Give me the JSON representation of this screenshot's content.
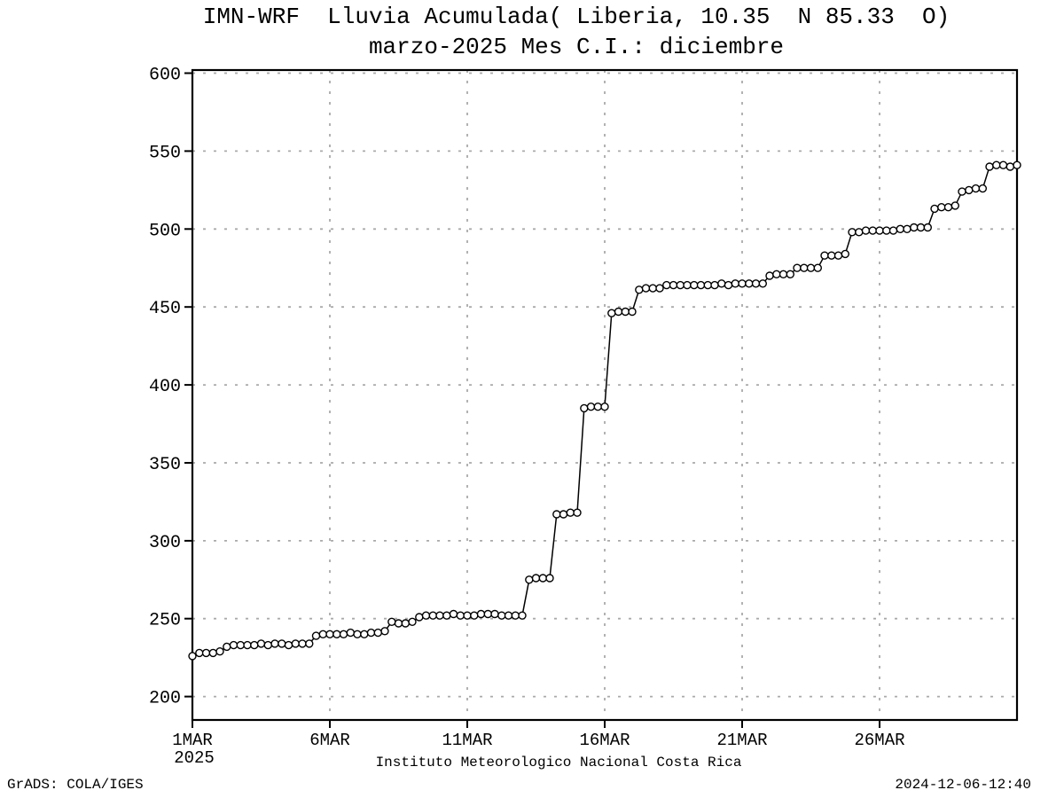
{
  "titles": {
    "line1": "IMN-WRF  Lluvia Acumulada( Liberia, 10.35  N 85.33  O)",
    "line2": "marzo-2025 Mes C.I.: diciembre"
  },
  "footer": {
    "left": "GrADS: COLA/IGES",
    "right": "2024-12-06-12:40"
  },
  "chart_data": {
    "type": "line",
    "title": "IMN-WRF  Lluvia Acumulada( Liberia, 10.35  N 85.33  O)",
    "subtitle": "marzo-2025 Mes C.I.: diciembre",
    "xlabel": "Instituto Meteorologico Nacional Costa Rica",
    "ylabel": "",
    "grid": true,
    "legend": "none",
    "marker": "open-circle",
    "xlim": [
      1,
      31
    ],
    "ylim": [
      185,
      602
    ],
    "y_ticks": [
      200,
      250,
      300,
      350,
      400,
      450,
      500,
      550,
      600
    ],
    "x_ticks": [
      {
        "day": 1,
        "label": "1MAR",
        "sublabel": "2025"
      },
      {
        "day": 6,
        "label": "6MAR"
      },
      {
        "day": 11,
        "label": "11MAR"
      },
      {
        "day": 16,
        "label": "16MAR"
      },
      {
        "day": 21,
        "label": "21MAR"
      },
      {
        "day": 26,
        "label": "26MAR"
      }
    ],
    "colors": {
      "line": "#000000",
      "marker_fill": "#ffffff",
      "marker_stroke": "#000000",
      "grid": "#aaaaaa",
      "frame": "#000000",
      "text": "#000000"
    },
    "series": [
      {
        "name": "Lluvia Acumulada",
        "points": [
          [
            1.0,
            226
          ],
          [
            1.25,
            228
          ],
          [
            1.5,
            228
          ],
          [
            1.75,
            228
          ],
          [
            2.0,
            229
          ],
          [
            2.25,
            232
          ],
          [
            2.5,
            233
          ],
          [
            2.75,
            233
          ],
          [
            3.0,
            233
          ],
          [
            3.25,
            233
          ],
          [
            3.5,
            234
          ],
          [
            3.75,
            233
          ],
          [
            4.0,
            234
          ],
          [
            4.25,
            234
          ],
          [
            4.5,
            233
          ],
          [
            4.75,
            234
          ],
          [
            5.0,
            234
          ],
          [
            5.25,
            234
          ],
          [
            5.5,
            239
          ],
          [
            5.75,
            240
          ],
          [
            6.0,
            240
          ],
          [
            6.25,
            240
          ],
          [
            6.5,
            240
          ],
          [
            6.75,
            241
          ],
          [
            7.0,
            240
          ],
          [
            7.25,
            240
          ],
          [
            7.5,
            241
          ],
          [
            7.75,
            241
          ],
          [
            8.0,
            242
          ],
          [
            8.25,
            248
          ],
          [
            8.5,
            247
          ],
          [
            8.75,
            247
          ],
          [
            9.0,
            248
          ],
          [
            9.25,
            251
          ],
          [
            9.5,
            252
          ],
          [
            9.75,
            252
          ],
          [
            10.0,
            252
          ],
          [
            10.25,
            252
          ],
          [
            10.5,
            253
          ],
          [
            10.75,
            252
          ],
          [
            11.0,
            252
          ],
          [
            11.25,
            252
          ],
          [
            11.5,
            253
          ],
          [
            11.75,
            253
          ],
          [
            12.0,
            253
          ],
          [
            12.25,
            252
          ],
          [
            12.5,
            252
          ],
          [
            12.75,
            252
          ],
          [
            13.0,
            252
          ],
          [
            13.25,
            275
          ],
          [
            13.5,
            276
          ],
          [
            13.75,
            276
          ],
          [
            14.0,
            276
          ],
          [
            14.25,
            317
          ],
          [
            14.5,
            317
          ],
          [
            14.75,
            318
          ],
          [
            15.0,
            318
          ],
          [
            15.25,
            385
          ],
          [
            15.5,
            386
          ],
          [
            15.75,
            386
          ],
          [
            16.0,
            386
          ],
          [
            16.25,
            446
          ],
          [
            16.5,
            447
          ],
          [
            16.75,
            447
          ],
          [
            17.0,
            447
          ],
          [
            17.25,
            461
          ],
          [
            17.5,
            462
          ],
          [
            17.75,
            462
          ],
          [
            18.0,
            462
          ],
          [
            18.25,
            464
          ],
          [
            18.5,
            464
          ],
          [
            18.75,
            464
          ],
          [
            19.0,
            464
          ],
          [
            19.25,
            464
          ],
          [
            19.5,
            464
          ],
          [
            19.75,
            464
          ],
          [
            20.0,
            464
          ],
          [
            20.25,
            465
          ],
          [
            20.5,
            464
          ],
          [
            20.75,
            465
          ],
          [
            21.0,
            465
          ],
          [
            21.25,
            465
          ],
          [
            21.5,
            465
          ],
          [
            21.75,
            465
          ],
          [
            22.0,
            470
          ],
          [
            22.25,
            471
          ],
          [
            22.5,
            471
          ],
          [
            22.75,
            471
          ],
          [
            23.0,
            475
          ],
          [
            23.25,
            475
          ],
          [
            23.5,
            475
          ],
          [
            23.75,
            475
          ],
          [
            24.0,
            483
          ],
          [
            24.25,
            483
          ],
          [
            24.5,
            483
          ],
          [
            24.75,
            484
          ],
          [
            25.0,
            498
          ],
          [
            25.25,
            498
          ],
          [
            25.5,
            499
          ],
          [
            25.75,
            499
          ],
          [
            26.0,
            499
          ],
          [
            26.25,
            499
          ],
          [
            26.5,
            499
          ],
          [
            26.75,
            500
          ],
          [
            27.0,
            500
          ],
          [
            27.25,
            501
          ],
          [
            27.5,
            501
          ],
          [
            27.75,
            501
          ],
          [
            28.0,
            513
          ],
          [
            28.25,
            514
          ],
          [
            28.5,
            514
          ],
          [
            28.75,
            515
          ],
          [
            29.0,
            524
          ],
          [
            29.25,
            525
          ],
          [
            29.5,
            526
          ],
          [
            29.75,
            526
          ],
          [
            30.0,
            540
          ],
          [
            30.25,
            541
          ],
          [
            30.5,
            541
          ],
          [
            30.75,
            540
          ],
          [
            31.0,
            541
          ]
        ]
      }
    ]
  }
}
